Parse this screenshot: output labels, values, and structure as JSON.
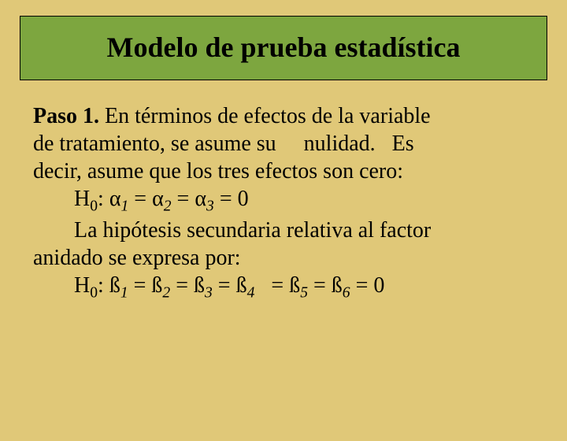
{
  "colors": {
    "background": "#e0c878",
    "title_box_bg": "#7da63f",
    "title_box_border": "#000000",
    "text": "#000000"
  },
  "typography": {
    "title_fontsize": 36,
    "title_weight": "bold",
    "body_fontsize": 28,
    "font_family": "Times New Roman"
  },
  "title": "Modelo de prueba estadística",
  "body": {
    "paso_label": "Paso 1.",
    "line1_rest": " En términos de efectos de la variable",
    "line2": "de tratamiento, se asume su     nulidad.   Es",
    "line3": "decir, asume que los tres efectos son cero:",
    "hypo1": {
      "H": "H",
      "sub0": "0",
      "colon": ": ",
      "a": "α",
      "s1": "1",
      "eq": " = ",
      "s2": "2",
      "s3": "3",
      "tail": " = 0"
    },
    "line5": "La hipótesis secundaria relativa al factor",
    "line6": "anidado se expresa por:",
    "hypo2": {
      "H": "H",
      "sub0": "0",
      "colon": ": ",
      "b": "ß",
      "s1": "1",
      "s2": "2",
      "s3": "3",
      "s4": "4",
      "s5": "5",
      "s6": "6",
      "eq": " = ",
      "tail": " = 0",
      "sp": "  "
    }
  }
}
